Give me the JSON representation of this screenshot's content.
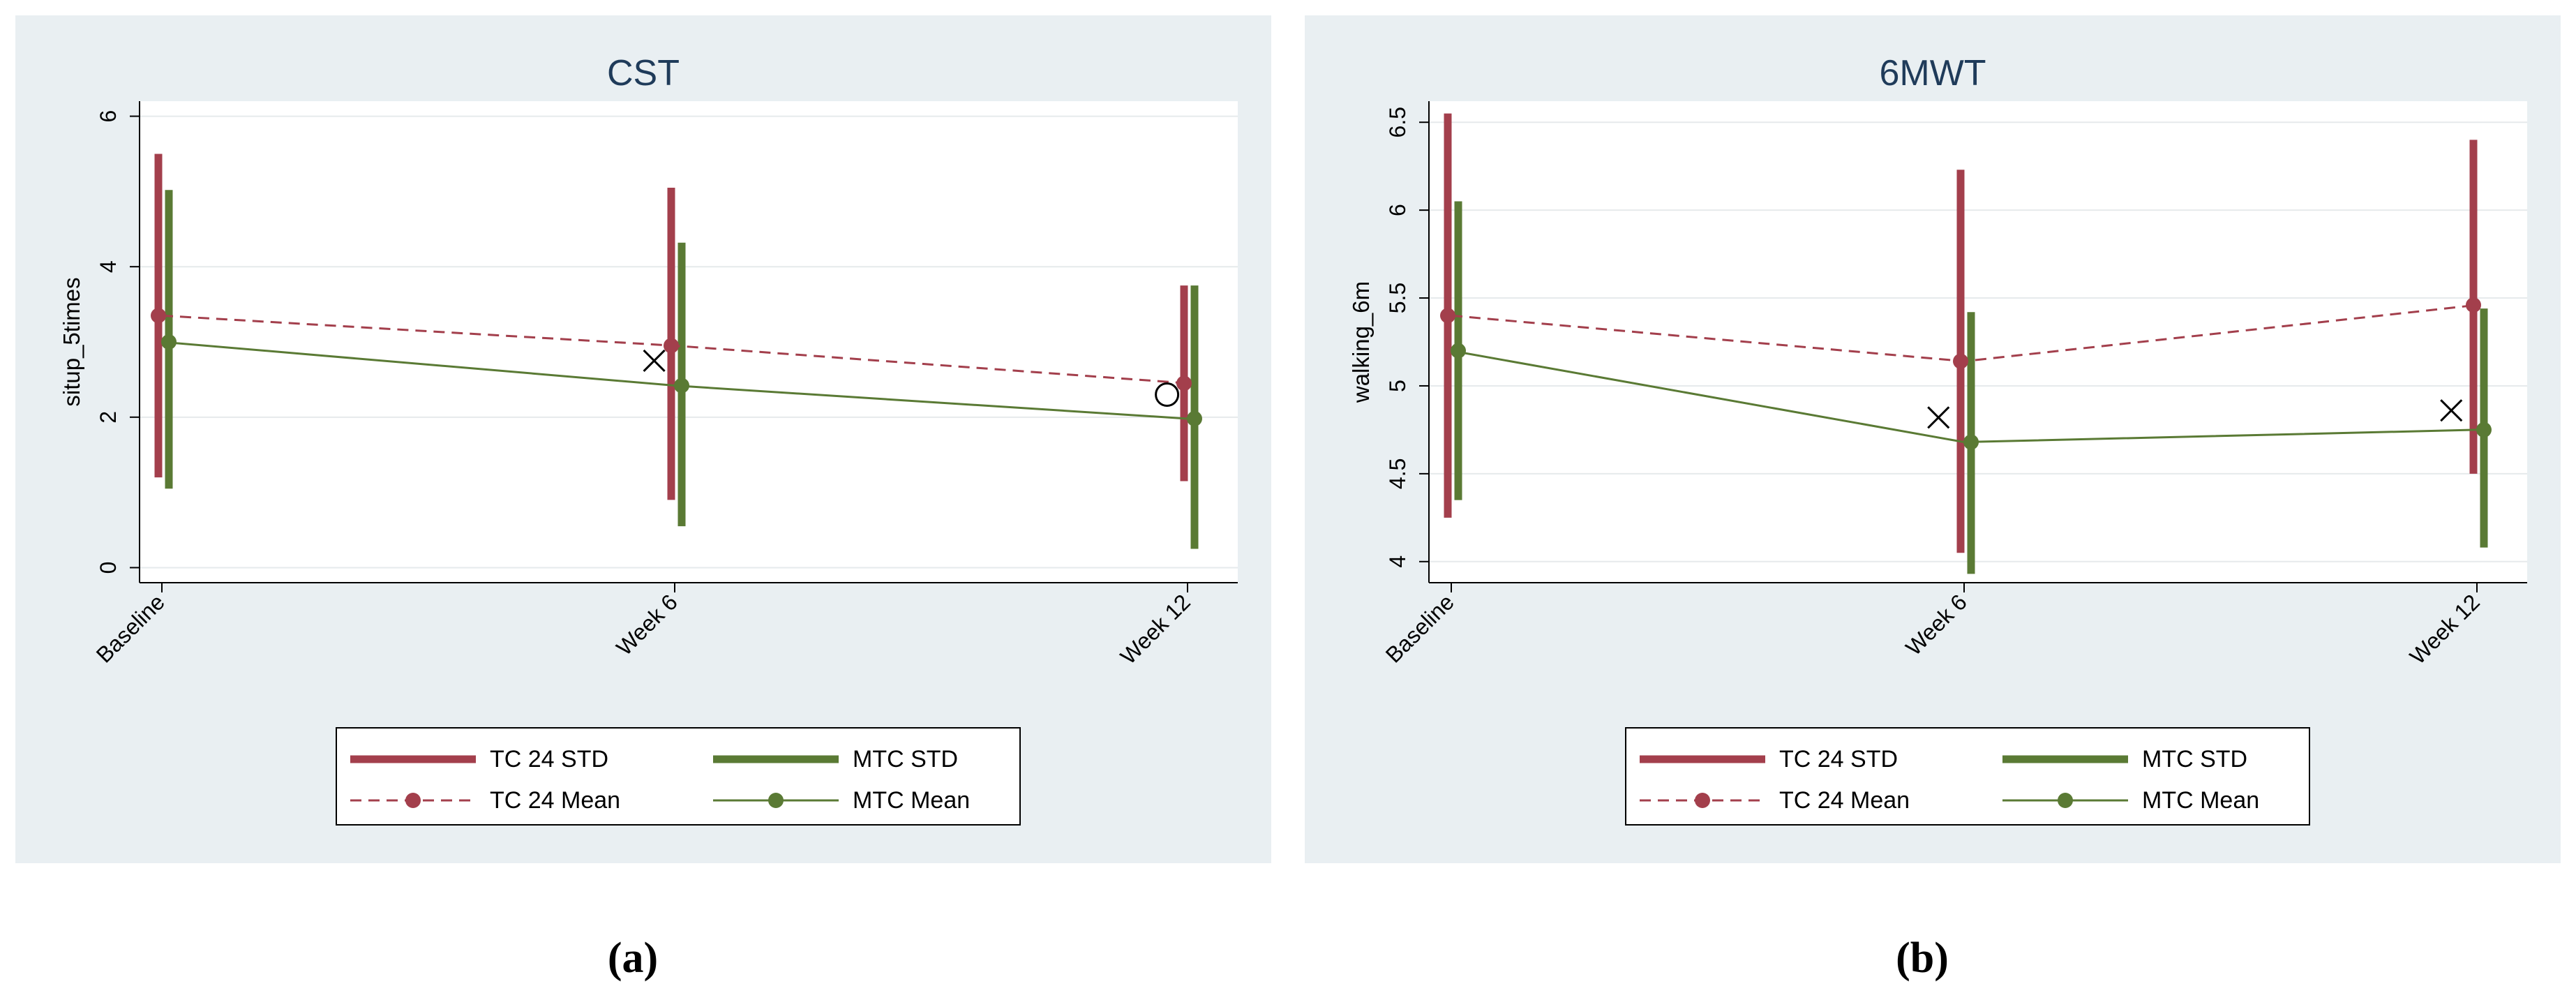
{
  "colors": {
    "tc": "#a33f4c",
    "mtc": "#5a7a34",
    "panel_bg": "#e9eff2",
    "plot_bg": "#ffffff",
    "title": "#1f3b5a",
    "grid": "#e6eaec"
  },
  "captions": {
    "a": "(a)",
    "b": "(b)"
  },
  "chart_data": [
    {
      "id": "a",
      "type": "line",
      "title": "CST",
      "xlabel": "",
      "ylabel": "situp_5times",
      "categories": [
        "Baseline",
        "Week 6",
        "Week 12"
      ],
      "ylim": [
        -0.2,
        6.2
      ],
      "yticks": [
        0,
        2,
        4,
        6
      ],
      "ytick_labels": [
        "0",
        "2",
        "4",
        "6"
      ],
      "grid": true,
      "series": [
        {
          "name": "TC 24",
          "mean": [
            3.35,
            2.95,
            2.45
          ],
          "std_low": [
            1.2,
            0.9,
            1.15
          ],
          "std_high": [
            5.5,
            5.05,
            3.75
          ]
        },
        {
          "name": "MTC",
          "mean": [
            3.0,
            2.42,
            1.98
          ],
          "std_low": [
            1.05,
            0.55,
            0.25
          ],
          "std_high": [
            5.02,
            4.32,
            3.75
          ]
        }
      ],
      "markers": [
        {
          "symbol": "x",
          "category_pos": 0.96,
          "y": 2.75
        },
        {
          "symbol": "o",
          "category_pos": 1.96,
          "y": 2.3
        }
      ],
      "legend": {
        "placement": "bottom",
        "entries": [
          "TC 24 STD",
          "MTC STD",
          "TC 24 Mean",
          "MTC Mean"
        ]
      }
    },
    {
      "id": "b",
      "type": "line",
      "title": "6MWT",
      "xlabel": "",
      "ylabel": "walking_6m",
      "categories": [
        "Baseline",
        "Week 6",
        "Week 12"
      ],
      "ylim": [
        3.88,
        6.62
      ],
      "yticks": [
        4,
        4.5,
        5,
        5.5,
        6,
        6.5
      ],
      "ytick_labels": [
        "4",
        "4.5",
        "5",
        "5.5",
        "6",
        "6.5"
      ],
      "grid": true,
      "series": [
        {
          "name": "TC 24",
          "mean": [
            5.4,
            5.14,
            5.46
          ],
          "std_low": [
            4.25,
            4.05,
            4.5
          ],
          "std_high": [
            6.55,
            6.23,
            6.4
          ]
        },
        {
          "name": "MTC",
          "mean": [
            5.2,
            4.68,
            4.75
          ],
          "std_low": [
            4.35,
            3.93,
            4.08
          ],
          "std_high": [
            6.05,
            5.42,
            5.44
          ]
        }
      ],
      "markers": [
        {
          "symbol": "x",
          "category_pos": 0.95,
          "y": 4.82
        },
        {
          "symbol": "x",
          "category_pos": 1.95,
          "y": 4.86
        }
      ],
      "legend": {
        "placement": "bottom",
        "entries": [
          "TC 24 STD",
          "MTC STD",
          "TC 24 Mean",
          "MTC Mean"
        ]
      }
    }
  ]
}
